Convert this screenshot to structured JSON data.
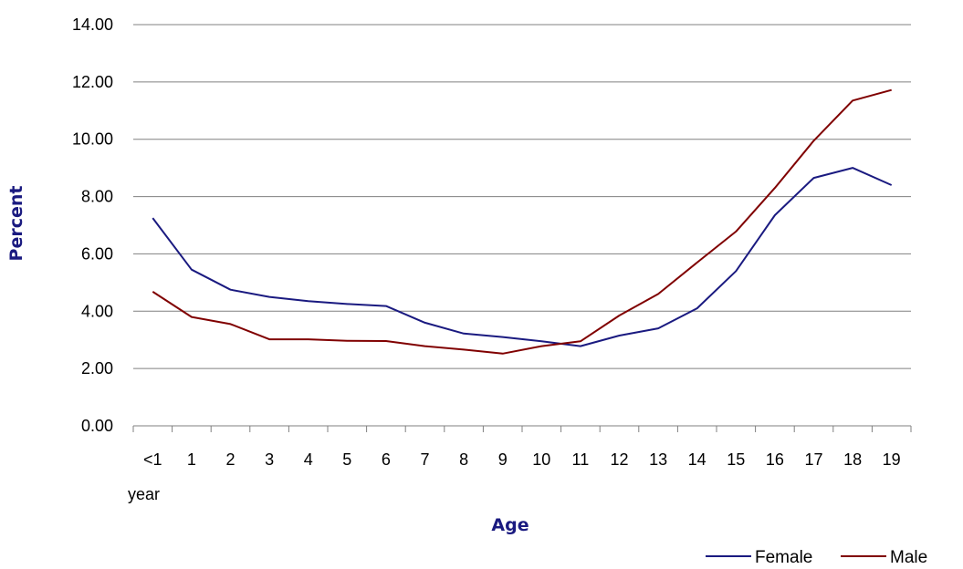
{
  "chart_data": {
    "type": "line",
    "categories": [
      "<1 year",
      "1",
      "2",
      "3",
      "4",
      "5",
      "6",
      "7",
      "8",
      "9",
      "10",
      "11",
      "12",
      "13",
      "14",
      "15",
      "16",
      "17",
      "18",
      "19"
    ],
    "category_lines": [
      [
        "<1",
        "year"
      ],
      [
        "1"
      ],
      [
        "2"
      ],
      [
        "3"
      ],
      [
        "4"
      ],
      [
        "5"
      ],
      [
        "6"
      ],
      [
        "7"
      ],
      [
        "8"
      ],
      [
        "9"
      ],
      [
        "10"
      ],
      [
        "11"
      ],
      [
        "12"
      ],
      [
        "13"
      ],
      [
        "14"
      ],
      [
        "15"
      ],
      [
        "16"
      ],
      [
        "17"
      ],
      [
        "18"
      ],
      [
        "19"
      ]
    ],
    "series": [
      {
        "name": "Female",
        "color": "#1a1a80",
        "values": [
          7.25,
          5.45,
          4.75,
          4.5,
          4.35,
          4.25,
          4.18,
          3.6,
          3.22,
          3.1,
          2.95,
          2.78,
          3.15,
          3.4,
          4.1,
          5.4,
          7.35,
          8.65,
          9.0,
          8.4
        ]
      },
      {
        "name": "Male",
        "color": "#800000",
        "values": [
          4.68,
          3.8,
          3.55,
          3.02,
          3.02,
          2.97,
          2.96,
          2.78,
          2.66,
          2.52,
          2.78,
          2.95,
          3.85,
          4.6,
          5.7,
          6.78,
          8.3,
          9.95,
          11.35,
          11.72
        ]
      }
    ],
    "y_ticks": [
      "0.00",
      "2.00",
      "4.00",
      "6.00",
      "8.00",
      "10.00",
      "12.00",
      "14.00"
    ],
    "ylim": [
      0,
      14
    ],
    "xlabel": "Age",
    "ylabel": "Percent",
    "grid": true,
    "legend_position": "bottom-right"
  }
}
